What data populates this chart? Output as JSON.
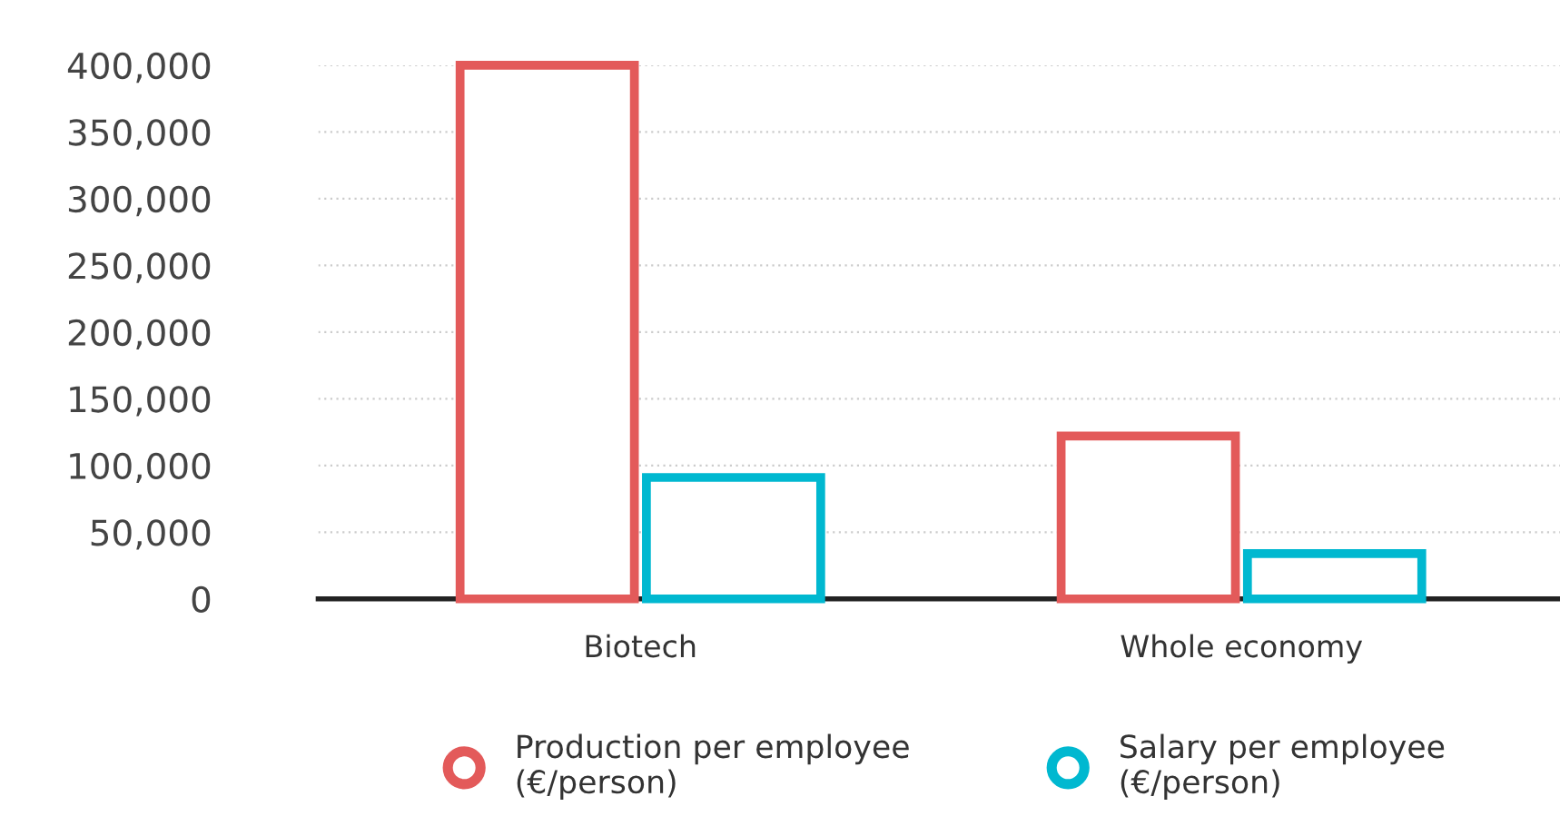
{
  "chart_data": {
    "type": "bar",
    "categories": [
      "Biotech",
      "Whole economy"
    ],
    "series": [
      {
        "name": "Production per employee\n(€/person)",
        "color": "#e35a5a",
        "values": [
          400000,
          122000
        ]
      },
      {
        "name": "Salary per employee\n(€/person)",
        "color": "#00b8d0",
        "values": [
          91000,
          34000
        ]
      }
    ],
    "ylim": [
      0,
      400000
    ],
    "yticks": [
      {
        "value": 0,
        "label": "0"
      },
      {
        "value": 50000,
        "label": "50,000"
      },
      {
        "value": 100000,
        "label": "100,000"
      },
      {
        "value": 150000,
        "label": "150,000"
      },
      {
        "value": 200000,
        "label": "200,000"
      },
      {
        "value": 250000,
        "label": "250,000"
      },
      {
        "value": 300000,
        "label": "300,000"
      },
      {
        "value": 350000,
        "label": "350,000"
      },
      {
        "value": 400000,
        "label": "400,000"
      }
    ],
    "grid": "y",
    "legend": "bottom",
    "marker": "circle"
  }
}
